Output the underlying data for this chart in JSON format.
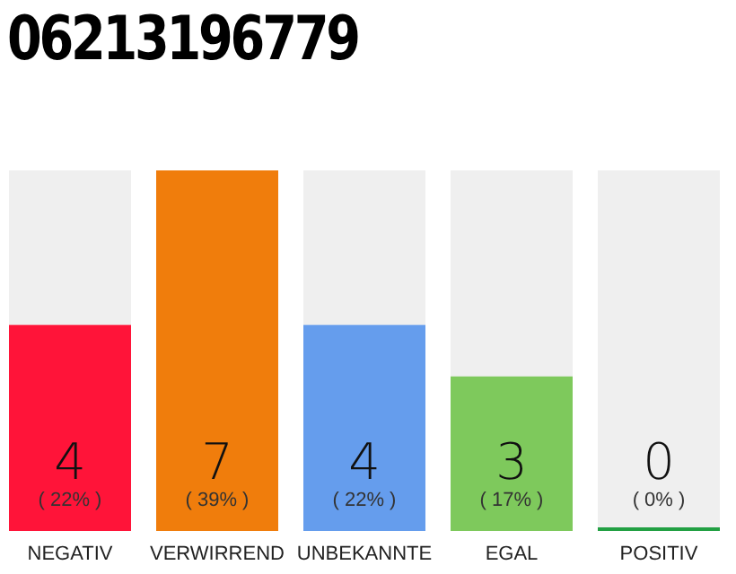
{
  "chart_data": {
    "type": "bar",
    "title": "06213196779",
    "categories": [
      "NEGATIV",
      "VERWIRREND",
      "UNBEKANNTE",
      "EGAL",
      "POSITIV"
    ],
    "values": [
      4,
      7,
      4,
      3,
      0
    ],
    "colors": [
      "#ff1439",
      "#f07d0c",
      "#659ded",
      "#7ec95c",
      "#22a043"
    ],
    "ylim": [
      0,
      7
    ],
    "tick_labels": "x",
    "data_labels": true,
    "annotations": [
      "( 22% )",
      "( 39% )",
      "( 22% )",
      "( 17% )",
      "( 0% )"
    ]
  }
}
